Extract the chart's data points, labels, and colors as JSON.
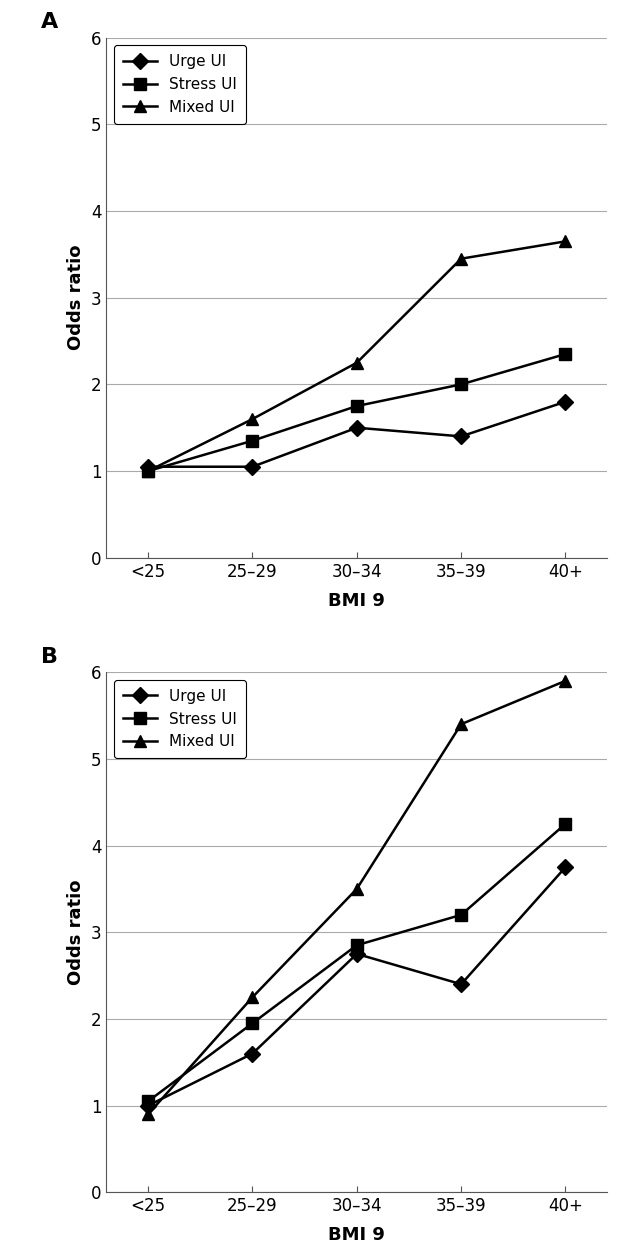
{
  "x_labels": [
    "<25",
    "25–29",
    "30–34",
    "35–39",
    "40+"
  ],
  "panel_A": {
    "label": "A",
    "urge_ui": [
      1.05,
      1.05,
      1.5,
      1.4,
      1.8
    ],
    "stress_ui": [
      1.0,
      1.35,
      1.75,
      2.0,
      2.35
    ],
    "mixed_ui": [
      1.0,
      1.6,
      2.25,
      3.45,
      3.65
    ],
    "ylim": [
      0,
      6
    ],
    "yticks": [
      0,
      1,
      2,
      3,
      4,
      5,
      6
    ]
  },
  "panel_B": {
    "label": "B",
    "urge_ui": [
      1.0,
      1.6,
      2.75,
      2.4,
      3.75
    ],
    "stress_ui": [
      1.05,
      1.95,
      2.85,
      3.2,
      4.25
    ],
    "mixed_ui": [
      0.9,
      2.25,
      3.5,
      5.4,
      5.9
    ],
    "ylim": [
      0,
      6
    ],
    "yticks": [
      0,
      1,
      2,
      3,
      4,
      5,
      6
    ]
  },
  "legend_labels": [
    "Urge UI",
    "Stress UI",
    "Mixed UI"
  ],
  "markers": [
    "D",
    "s",
    "^"
  ],
  "line_color": "#000000",
  "grid_color": "#aaaaaa",
  "ylabel": "Odds ratio",
  "xlabel": "BMI 9",
  "panel_label_fontsize": 16,
  "axis_label_fontsize": 13,
  "tick_fontsize": 12,
  "legend_fontsize": 11,
  "marker_size": 8,
  "line_width": 1.8
}
